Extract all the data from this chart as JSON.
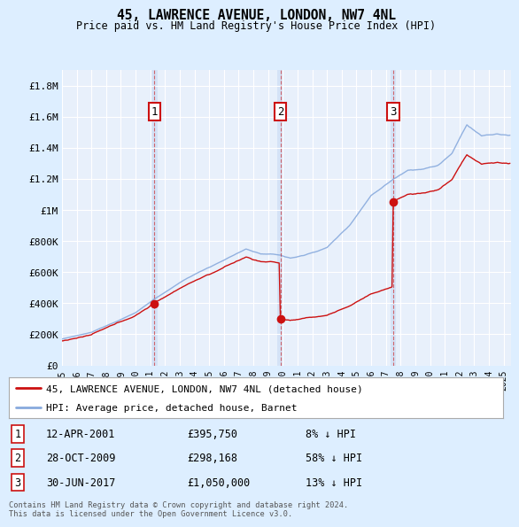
{
  "title": "45, LAWRENCE AVENUE, LONDON, NW7 4NL",
  "subtitle": "Price paid vs. HM Land Registry's House Price Index (HPI)",
  "legend_line1": "45, LAWRENCE AVENUE, LONDON, NW7 4NL (detached house)",
  "legend_line2": "HPI: Average price, detached house, Barnet",
  "footer1": "Contains HM Land Registry data © Crown copyright and database right 2024.",
  "footer2": "This data is licensed under the Open Government Licence v3.0.",
  "transactions": [
    {
      "num": 1,
      "date": "12-APR-2001",
      "price": 395750,
      "hpi_rel": "8% ↓ HPI",
      "x_year": 2001.28
    },
    {
      "num": 2,
      "date": "28-OCT-2009",
      "price": 298168,
      "hpi_rel": "58% ↓ HPI",
      "x_year": 2009.83
    },
    {
      "num": 3,
      "date": "30-JUN-2017",
      "price": 1050000,
      "hpi_rel": "13% ↓ HPI",
      "x_year": 2017.5
    }
  ],
  "ylim": [
    0,
    1900000
  ],
  "yticks": [
    0,
    200000,
    400000,
    600000,
    800000,
    1000000,
    1200000,
    1400000,
    1600000,
    1800000
  ],
  "ytick_labels": [
    "£0",
    "£200K",
    "£400K",
    "£600K",
    "£800K",
    "£1M",
    "£1.2M",
    "£1.4M",
    "£1.6M",
    "£1.8M"
  ],
  "bg_color": "#ddeeff",
  "plot_bg": "#e8f0fb",
  "grid_color": "#ffffff",
  "hpi_color": "#88aadd",
  "price_color": "#cc1111",
  "vline_color": "#cc1111",
  "vband_color": "#ccddf5",
  "marker_box_color": "#cc1111",
  "x_start": 1995.0,
  "x_end": 2025.5,
  "xtick_years": [
    1995,
    1996,
    1997,
    1998,
    1999,
    2000,
    2001,
    2002,
    2003,
    2004,
    2005,
    2006,
    2007,
    2008,
    2009,
    2010,
    2011,
    2012,
    2013,
    2014,
    2015,
    2016,
    2017,
    2018,
    2019,
    2020,
    2021,
    2022,
    2023,
    2024,
    2025
  ]
}
